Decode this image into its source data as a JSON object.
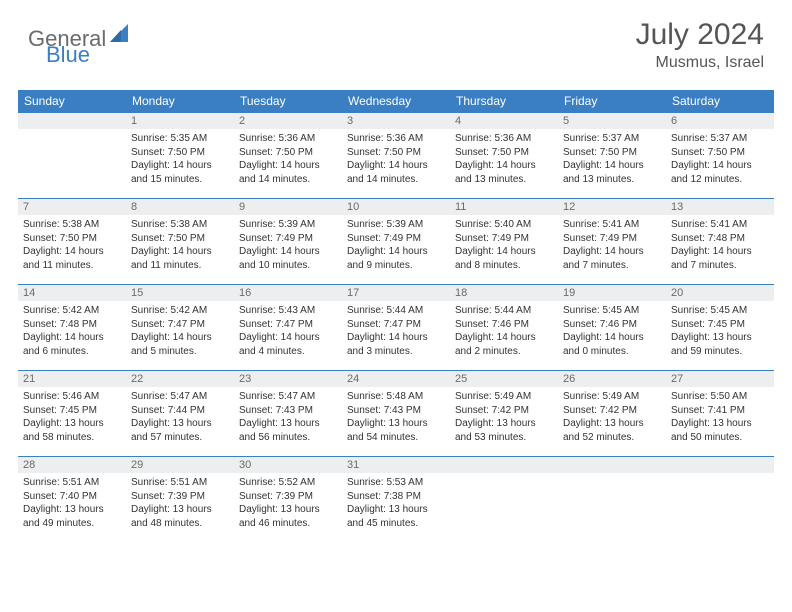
{
  "logo": {
    "part1": "General",
    "part2": "Blue"
  },
  "title": "July 2024",
  "location": "Musmus, Israel",
  "colors": {
    "brand_blue": "#3a7fc4",
    "header_gray": "#6b6b6b",
    "cell_header_bg": "#eceeef",
    "text": "#333333",
    "bg": "#ffffff"
  },
  "weekdays": [
    "Sunday",
    "Monday",
    "Tuesday",
    "Wednesday",
    "Thursday",
    "Friday",
    "Saturday"
  ],
  "weeks": [
    [
      {
        "n": "",
        "l": [
          "",
          "",
          "",
          ""
        ]
      },
      {
        "n": "1",
        "l": [
          "Sunrise: 5:35 AM",
          "Sunset: 7:50 PM",
          "Daylight: 14 hours",
          "and 15 minutes."
        ]
      },
      {
        "n": "2",
        "l": [
          "Sunrise: 5:36 AM",
          "Sunset: 7:50 PM",
          "Daylight: 14 hours",
          "and 14 minutes."
        ]
      },
      {
        "n": "3",
        "l": [
          "Sunrise: 5:36 AM",
          "Sunset: 7:50 PM",
          "Daylight: 14 hours",
          "and 14 minutes."
        ]
      },
      {
        "n": "4",
        "l": [
          "Sunrise: 5:36 AM",
          "Sunset: 7:50 PM",
          "Daylight: 14 hours",
          "and 13 minutes."
        ]
      },
      {
        "n": "5",
        "l": [
          "Sunrise: 5:37 AM",
          "Sunset: 7:50 PM",
          "Daylight: 14 hours",
          "and 13 minutes."
        ]
      },
      {
        "n": "6",
        "l": [
          "Sunrise: 5:37 AM",
          "Sunset: 7:50 PM",
          "Daylight: 14 hours",
          "and 12 minutes."
        ]
      }
    ],
    [
      {
        "n": "7",
        "l": [
          "Sunrise: 5:38 AM",
          "Sunset: 7:50 PM",
          "Daylight: 14 hours",
          "and 11 minutes."
        ]
      },
      {
        "n": "8",
        "l": [
          "Sunrise: 5:38 AM",
          "Sunset: 7:50 PM",
          "Daylight: 14 hours",
          "and 11 minutes."
        ]
      },
      {
        "n": "9",
        "l": [
          "Sunrise: 5:39 AM",
          "Sunset: 7:49 PM",
          "Daylight: 14 hours",
          "and 10 minutes."
        ]
      },
      {
        "n": "10",
        "l": [
          "Sunrise: 5:39 AM",
          "Sunset: 7:49 PM",
          "Daylight: 14 hours",
          "and 9 minutes."
        ]
      },
      {
        "n": "11",
        "l": [
          "Sunrise: 5:40 AM",
          "Sunset: 7:49 PM",
          "Daylight: 14 hours",
          "and 8 minutes."
        ]
      },
      {
        "n": "12",
        "l": [
          "Sunrise: 5:41 AM",
          "Sunset: 7:49 PM",
          "Daylight: 14 hours",
          "and 7 minutes."
        ]
      },
      {
        "n": "13",
        "l": [
          "Sunrise: 5:41 AM",
          "Sunset: 7:48 PM",
          "Daylight: 14 hours",
          "and 7 minutes."
        ]
      }
    ],
    [
      {
        "n": "14",
        "l": [
          "Sunrise: 5:42 AM",
          "Sunset: 7:48 PM",
          "Daylight: 14 hours",
          "and 6 minutes."
        ]
      },
      {
        "n": "15",
        "l": [
          "Sunrise: 5:42 AM",
          "Sunset: 7:47 PM",
          "Daylight: 14 hours",
          "and 5 minutes."
        ]
      },
      {
        "n": "16",
        "l": [
          "Sunrise: 5:43 AM",
          "Sunset: 7:47 PM",
          "Daylight: 14 hours",
          "and 4 minutes."
        ]
      },
      {
        "n": "17",
        "l": [
          "Sunrise: 5:44 AM",
          "Sunset: 7:47 PM",
          "Daylight: 14 hours",
          "and 3 minutes."
        ]
      },
      {
        "n": "18",
        "l": [
          "Sunrise: 5:44 AM",
          "Sunset: 7:46 PM",
          "Daylight: 14 hours",
          "and 2 minutes."
        ]
      },
      {
        "n": "19",
        "l": [
          "Sunrise: 5:45 AM",
          "Sunset: 7:46 PM",
          "Daylight: 14 hours",
          "and 0 minutes."
        ]
      },
      {
        "n": "20",
        "l": [
          "Sunrise: 5:45 AM",
          "Sunset: 7:45 PM",
          "Daylight: 13 hours",
          "and 59 minutes."
        ]
      }
    ],
    [
      {
        "n": "21",
        "l": [
          "Sunrise: 5:46 AM",
          "Sunset: 7:45 PM",
          "Daylight: 13 hours",
          "and 58 minutes."
        ]
      },
      {
        "n": "22",
        "l": [
          "Sunrise: 5:47 AM",
          "Sunset: 7:44 PM",
          "Daylight: 13 hours",
          "and 57 minutes."
        ]
      },
      {
        "n": "23",
        "l": [
          "Sunrise: 5:47 AM",
          "Sunset: 7:43 PM",
          "Daylight: 13 hours",
          "and 56 minutes."
        ]
      },
      {
        "n": "24",
        "l": [
          "Sunrise: 5:48 AM",
          "Sunset: 7:43 PM",
          "Daylight: 13 hours",
          "and 54 minutes."
        ]
      },
      {
        "n": "25",
        "l": [
          "Sunrise: 5:49 AM",
          "Sunset: 7:42 PM",
          "Daylight: 13 hours",
          "and 53 minutes."
        ]
      },
      {
        "n": "26",
        "l": [
          "Sunrise: 5:49 AM",
          "Sunset: 7:42 PM",
          "Daylight: 13 hours",
          "and 52 minutes."
        ]
      },
      {
        "n": "27",
        "l": [
          "Sunrise: 5:50 AM",
          "Sunset: 7:41 PM",
          "Daylight: 13 hours",
          "and 50 minutes."
        ]
      }
    ],
    [
      {
        "n": "28",
        "l": [
          "Sunrise: 5:51 AM",
          "Sunset: 7:40 PM",
          "Daylight: 13 hours",
          "and 49 minutes."
        ]
      },
      {
        "n": "29",
        "l": [
          "Sunrise: 5:51 AM",
          "Sunset: 7:39 PM",
          "Daylight: 13 hours",
          "and 48 minutes."
        ]
      },
      {
        "n": "30",
        "l": [
          "Sunrise: 5:52 AM",
          "Sunset: 7:39 PM",
          "Daylight: 13 hours",
          "and 46 minutes."
        ]
      },
      {
        "n": "31",
        "l": [
          "Sunrise: 5:53 AM",
          "Sunset: 7:38 PM",
          "Daylight: 13 hours",
          "and 45 minutes."
        ]
      },
      {
        "n": "",
        "l": [
          "",
          "",
          "",
          ""
        ]
      },
      {
        "n": "",
        "l": [
          "",
          "",
          "",
          ""
        ]
      },
      {
        "n": "",
        "l": [
          "",
          "",
          "",
          ""
        ]
      }
    ]
  ]
}
